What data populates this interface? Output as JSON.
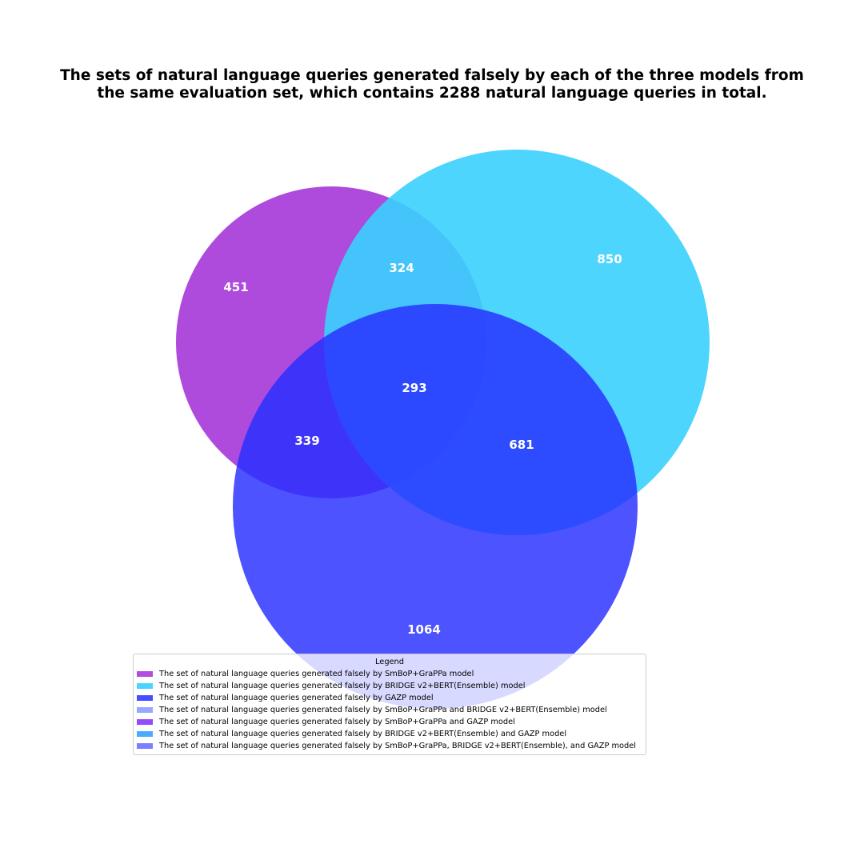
{
  "title": {
    "line1": "The sets of natural language queries generated falsely by each of the three models from",
    "line2": "the same evaluation set, which contains 2288 natural language queries in total."
  },
  "sets": [
    {
      "name": "SmBoP+GraPPa",
      "color": "#a02cd6",
      "opacity": 0.85
    },
    {
      "name": "BRIDGE v2+BERT(Ensemble)",
      "color": "#3ad0fe",
      "opacity": 0.9
    },
    {
      "name": "GAZP",
      "color": "#2830ff",
      "opacity": 0.83
    }
  ],
  "regions": {
    "smbop_only": "451",
    "bridge_only": "850",
    "gazp_only": "1064",
    "smbop_bridge": "324",
    "smbop_gazp": "339",
    "bridge_gazp": "681",
    "all_three": "293"
  },
  "legend": {
    "title": "Legend",
    "items": [
      {
        "label": "The set of natural language queries generated falsely by SmBoP+GraPPa model",
        "color": "#b04ce0"
      },
      {
        "label": "The set of natural language queries generated falsely by BRIDGE v2+BERT(Ensemble) model",
        "color": "#4cd3ff"
      },
      {
        "label": "The set of natural language queries generated falsely by GAZP model",
        "color": "#4b4bff"
      },
      {
        "label": "The set of natural language queries generated falsely by SmBoP+GraPPa and BRIDGE v2+BERT(Ensemble) model",
        "color": "#96a8ff"
      },
      {
        "label": "The set of natural language queries generated falsely by SmBoP+GraPPa and GAZP model",
        "color": "#944aff"
      },
      {
        "label": "The set of natural language queries generated falsely by BRIDGE v2+BERT(Ensemble) and GAZP model",
        "color": "#4eaaff"
      },
      {
        "label": "The set of natural language queries generated falsely by SmBoP+GraPPa, BRIDGE v2+BERT(Ensemble), and GAZP model",
        "color": "#7a80ff"
      }
    ]
  }
}
